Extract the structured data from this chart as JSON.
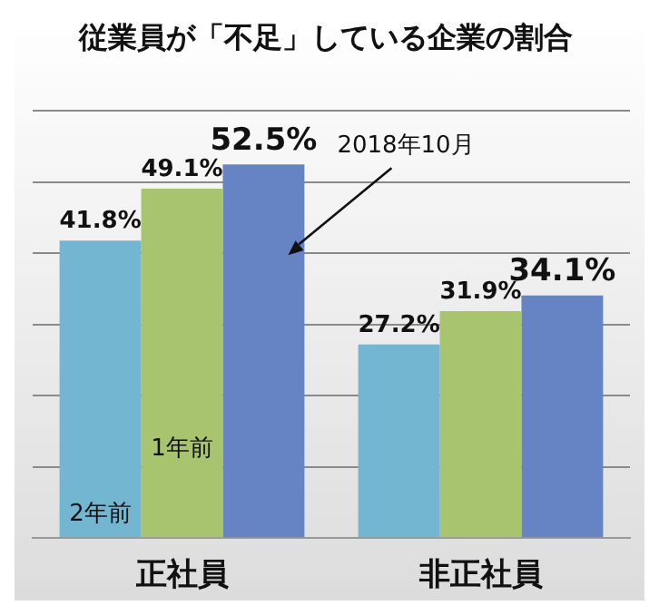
{
  "chart_data": {
    "type": "bar",
    "title": "従業員が「不足」している企業の割合",
    "categories": [
      "正社員",
      "非正社員"
    ],
    "ylim": [
      0,
      60
    ],
    "yticks": [
      {
        "value": 0,
        "label": null
      },
      {
        "value": 10,
        "label": null
      },
      {
        "value": 20,
        "label": null
      },
      {
        "value": 30,
        "label": null
      },
      {
        "value": 40,
        "label": null
      },
      {
        "value": 50,
        "label": null
      },
      {
        "value": 60,
        "label": null
      }
    ],
    "grid": "y",
    "legend": false,
    "series": [
      {
        "name": "2年前",
        "color": "#72b6d2",
        "values": [
          41.8,
          27.2
        ],
        "value_labels": [
          "41.8%",
          "27.2%"
        ]
      },
      {
        "name": "1年前",
        "color": "#a9c46e",
        "values": [
          49.1,
          31.9
        ],
        "value_labels": [
          "49.1%",
          "31.9%"
        ]
      },
      {
        "name": "2018年10月",
        "color": "#6684c4",
        "values": [
          52.5,
          34.1
        ],
        "value_labels": [
          "52.5%",
          "34.1%"
        ]
      }
    ]
  }
}
